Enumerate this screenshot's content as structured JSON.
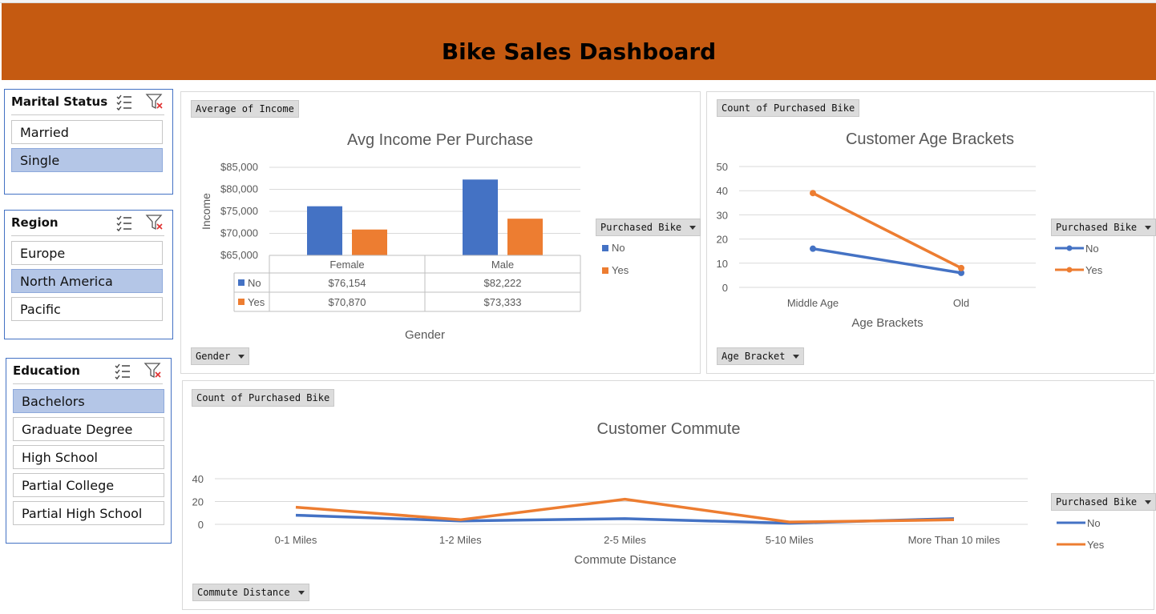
{
  "dashboard": {
    "title": "Bike Sales Dashboard"
  },
  "slicers": {
    "marital": {
      "title": "Marital Status",
      "items": [
        {
          "label": "Married",
          "selected": false
        },
        {
          "label": "Single",
          "selected": true
        }
      ]
    },
    "region": {
      "title": "Region",
      "items": [
        {
          "label": "Europe",
          "selected": false
        },
        {
          "label": "North America",
          "selected": true
        },
        {
          "label": "Pacific",
          "selected": false
        }
      ]
    },
    "education": {
      "title": "Education",
      "items": [
        {
          "label": "Bachelors",
          "selected": true
        },
        {
          "label": "Graduate Degree",
          "selected": false
        },
        {
          "label": "High School",
          "selected": false
        },
        {
          "label": "Partial College",
          "selected": false
        },
        {
          "label": "Partial High School",
          "selected": false
        }
      ]
    }
  },
  "colors": {
    "banner": "#c55a11",
    "series_no": "#4472c4",
    "series_yes": "#ed7d31",
    "slicer_selected": "#b4c6e7"
  },
  "income_chart": {
    "value_button": "Average of Income",
    "axis_button": "Gender",
    "legend_button": "Purchased Bike",
    "legend_items": [
      "No",
      "Yes"
    ],
    "data_table": {
      "rows": [
        {
          "label": "No",
          "values": [
            "$76,154",
            "$82,222"
          ]
        },
        {
          "label": "Yes",
          "values": [
            "$70,870",
            "$73,333"
          ]
        }
      ]
    }
  },
  "age_chart": {
    "value_button": "Count of Purchased Bike",
    "axis_button": "Age Bracket",
    "legend_button": "Purchased Bike",
    "legend_items": [
      "No",
      "Yes"
    ]
  },
  "commute_chart": {
    "value_button": "Count of Purchased Bike",
    "axis_button": "Commute Distance",
    "legend_button": "Purchased Bike",
    "legend_items": [
      "No",
      "Yes"
    ]
  },
  "chart_data": [
    {
      "type": "bar",
      "title": "Avg Income Per Purchase",
      "xlabel": "Gender",
      "ylabel": "Income",
      "categories": [
        "Female",
        "Male"
      ],
      "series": [
        {
          "name": "No",
          "values": [
            76154,
            82222
          ]
        },
        {
          "name": "Yes",
          "values": [
            70870,
            73333
          ]
        }
      ],
      "ylim": [
        65000,
        85000
      ],
      "yticks": [
        "$65,000",
        "$70,000",
        "$75,000",
        "$80,000",
        "$85,000"
      ],
      "grid": true,
      "legend": "right"
    },
    {
      "type": "line",
      "title": "Customer Age Brackets",
      "xlabel": "Age Brackets",
      "ylabel": "",
      "categories": [
        "Middle Age",
        "Old"
      ],
      "series": [
        {
          "name": "No",
          "values": [
            16,
            6
          ]
        },
        {
          "name": "Yes",
          "values": [
            39,
            8
          ]
        }
      ],
      "ylim": [
        0,
        50
      ],
      "yticks": [
        "0",
        "10",
        "20",
        "30",
        "40",
        "50"
      ],
      "grid": true,
      "legend": "right"
    },
    {
      "type": "line",
      "title": "Customer Commute",
      "xlabel": "Commute Distance",
      "ylabel": "",
      "categories": [
        "0-1 Miles",
        "1-2 Miles",
        "2-5 Miles",
        "5-10 Miles",
        "More Than 10 miles"
      ],
      "series": [
        {
          "name": "No",
          "values": [
            8,
            3,
            5,
            1,
            5
          ]
        },
        {
          "name": "Yes",
          "values": [
            15,
            4,
            22,
            2,
            4
          ]
        }
      ],
      "ylim": [
        0,
        40
      ],
      "yticks": [
        "0",
        "20",
        "40"
      ],
      "grid": true,
      "legend": "right"
    }
  ]
}
